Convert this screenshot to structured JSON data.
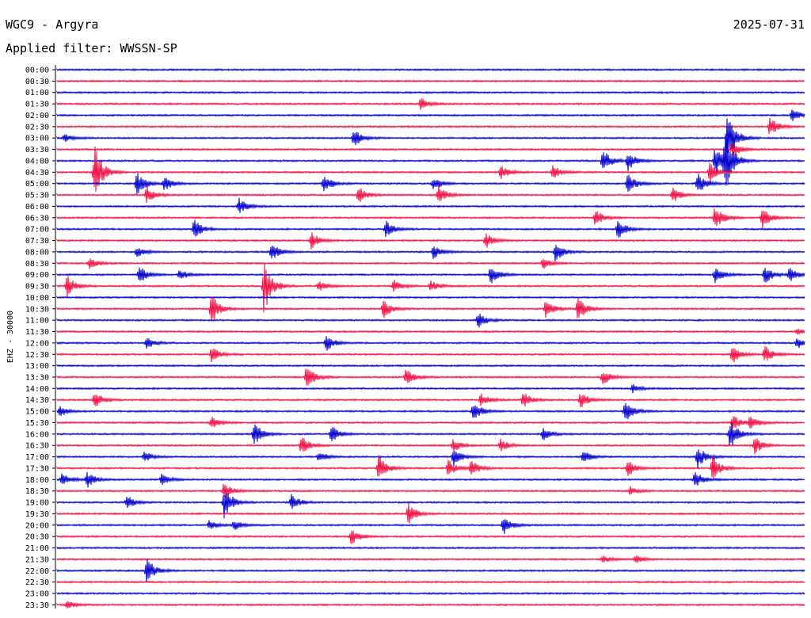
{
  "header": {
    "station": "WGC9 - Argyra",
    "date": "2025-07-31",
    "filter": "Applied filter: WWSSN-SP"
  },
  "chart_data": {
    "type": "line",
    "title": "WGC9 - Argyra",
    "ylabel": "EHZ - 30000",
    "colors": {
      "even": "#0000cc",
      "odd": "#ee1144",
      "axis": "#000000"
    },
    "categories": [
      "00:00",
      "00:30",
      "01:00",
      "01:30",
      "02:00",
      "02:30",
      "03:00",
      "03:30",
      "04:00",
      "04:30",
      "05:00",
      "05:30",
      "06:00",
      "06:30",
      "07:00",
      "07:30",
      "08:00",
      "08:30",
      "09:00",
      "09:30",
      "10:00",
      "10:30",
      "11:00",
      "11:30",
      "12:00",
      "12:30",
      "13:00",
      "13:30",
      "14:00",
      "14:30",
      "15:00",
      "15:30",
      "16:00",
      "16:30",
      "17:00",
      "17:30",
      "18:00",
      "18:30",
      "19:00",
      "19:30",
      "20:00",
      "20:30",
      "21:00",
      "21:30",
      "22:00",
      "22:30",
      "23:00",
      "23:30"
    ],
    "events_note": "events per trace as [minute offset within 30-min trace, relative amplitude 0-1]",
    "events": [
      [],
      [],
      [],
      [
        [
          14.6,
          0.22
        ]
      ],
      [
        [
          29.5,
          0.25
        ]
      ],
      [
        [
          28.6,
          0.35
        ]
      ],
      [
        [
          0.3,
          0.15
        ],
        [
          11.9,
          0.35
        ],
        [
          26.9,
          1.0
        ]
      ],
      [
        [
          27.1,
          0.3
        ]
      ],
      [
        [
          21.9,
          0.45
        ],
        [
          22.9,
          0.35
        ],
        [
          26.8,
          1.0
        ],
        [
          26.4,
          0.6
        ]
      ],
      [
        [
          1.5,
          1.0
        ],
        [
          17.8,
          0.25
        ],
        [
          19.9,
          0.25
        ],
        [
          26.2,
          0.4
        ]
      ],
      [
        [
          3.2,
          0.45
        ],
        [
          4.3,
          0.3
        ],
        [
          10.7,
          0.35
        ],
        [
          15.1,
          0.25
        ],
        [
          22.9,
          0.4
        ],
        [
          25.7,
          0.4
        ]
      ],
      [
        [
          3.6,
          0.3
        ],
        [
          12.1,
          0.3
        ],
        [
          15.3,
          0.35
        ],
        [
          24.7,
          0.3
        ]
      ],
      [
        [
          7.3,
          0.3
        ]
      ],
      [
        [
          21.6,
          0.3
        ],
        [
          26.4,
          0.5
        ],
        [
          28.3,
          0.4
        ]
      ],
      [
        [
          5.5,
          0.35
        ],
        [
          13.2,
          0.3
        ],
        [
          22.5,
          0.35
        ]
      ],
      [
        [
          10.2,
          0.3
        ],
        [
          17.2,
          0.3
        ]
      ],
      [
        [
          3.2,
          0.2
        ],
        [
          8.6,
          0.35
        ],
        [
          15.1,
          0.25
        ],
        [
          20.0,
          0.4
        ]
      ],
      [
        [
          1.3,
          0.2
        ],
        [
          19.5,
          0.2
        ]
      ],
      [
        [
          3.3,
          0.35
        ],
        [
          4.9,
          0.2
        ],
        [
          17.4,
          0.35
        ],
        [
          26.4,
          0.3
        ],
        [
          28.4,
          0.35
        ],
        [
          29.4,
          0.3
        ]
      ],
      [
        [
          0.4,
          0.4
        ],
        [
          8.3,
          1.0
        ],
        [
          10.5,
          0.2
        ],
        [
          13.5,
          0.25
        ],
        [
          15.0,
          0.2
        ]
      ],
      [],
      [
        [
          6.2,
          0.6
        ],
        [
          13.1,
          0.35
        ],
        [
          19.6,
          0.35
        ],
        [
          20.9,
          0.45
        ]
      ],
      [
        [
          16.9,
          0.3
        ]
      ],
      [
        [
          29.7,
          0.1
        ]
      ],
      [
        [
          3.6,
          0.2
        ],
        [
          10.8,
          0.3
        ],
        [
          29.7,
          0.2
        ]
      ],
      [
        [
          6.2,
          0.3
        ],
        [
          27.1,
          0.35
        ],
        [
          28.4,
          0.35
        ]
      ],
      [],
      [
        [
          10.0,
          0.45
        ],
        [
          14.0,
          0.3
        ],
        [
          21.9,
          0.3
        ]
      ],
      [
        [
          23.1,
          0.15
        ]
      ],
      [
        [
          1.5,
          0.3
        ],
        [
          17.0,
          0.25
        ],
        [
          18.7,
          0.3
        ],
        [
          21.0,
          0.3
        ]
      ],
      [
        [
          0.1,
          0.2
        ],
        [
          16.7,
          0.4
        ],
        [
          22.8,
          0.45
        ]
      ],
      [
        [
          6.2,
          0.25
        ],
        [
          27.1,
          0.3
        ],
        [
          27.8,
          0.25
        ]
      ],
      [
        [
          7.9,
          0.45
        ],
        [
          11.0,
          0.35
        ],
        [
          19.5,
          0.25
        ],
        [
          27.0,
          0.55
        ]
      ],
      [
        [
          9.8,
          0.35
        ],
        [
          15.9,
          0.25
        ],
        [
          17.8,
          0.25
        ],
        [
          28.0,
          0.3
        ]
      ],
      [
        [
          3.5,
          0.2
        ],
        [
          10.5,
          0.2
        ],
        [
          15.9,
          0.35
        ],
        [
          21.1,
          0.25
        ],
        [
          25.7,
          0.4
        ]
      ],
      [
        [
          12.9,
          0.5
        ],
        [
          15.7,
          0.3
        ],
        [
          16.6,
          0.3
        ],
        [
          22.9,
          0.3
        ],
        [
          26.3,
          0.45
        ]
      ],
      [
        [
          0.2,
          0.25
        ],
        [
          1.2,
          0.3
        ],
        [
          4.2,
          0.2
        ],
        [
          25.6,
          0.3
        ]
      ],
      [
        [
          6.7,
          0.3
        ],
        [
          23.0,
          0.15
        ]
      ],
      [
        [
          2.8,
          0.25
        ],
        [
          6.7,
          0.6
        ],
        [
          9.4,
          0.3
        ]
      ],
      [
        [
          14.1,
          0.4
        ]
      ],
      [
        [
          6.1,
          0.2
        ],
        [
          7.1,
          0.2
        ],
        [
          17.9,
          0.35
        ]
      ],
      [
        [
          11.8,
          0.3
        ]
      ],
      [],
      [
        [
          21.9,
          0.15
        ],
        [
          23.2,
          0.15
        ]
      ],
      [
        [
          3.6,
          0.45
        ]
      ],
      [],
      [],
      [
        [
          0.4,
          0.15
        ]
      ]
    ]
  }
}
